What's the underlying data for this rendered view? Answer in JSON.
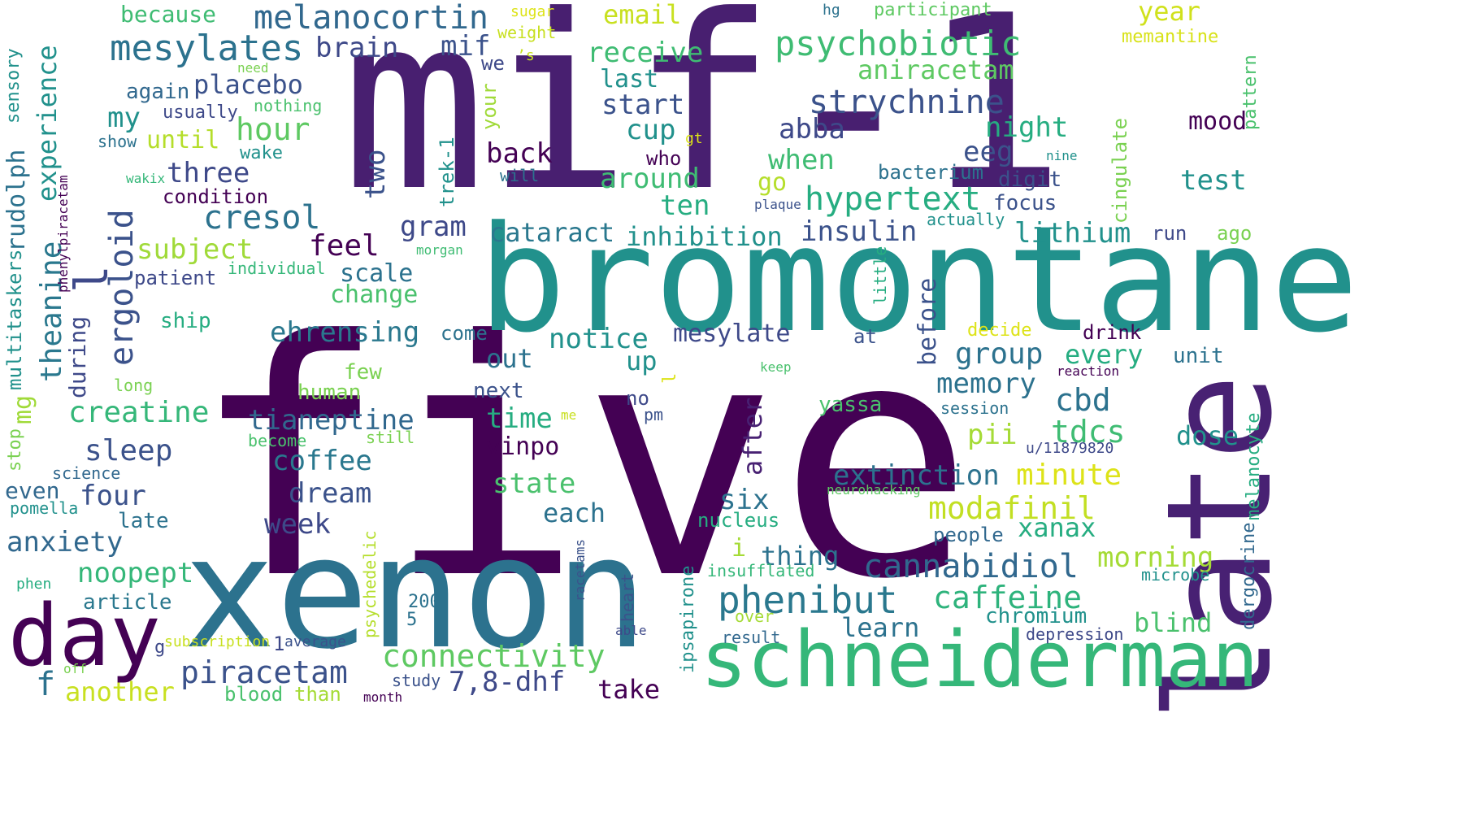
{
  "cloud": {
    "background": "#ffffff",
    "palette": "viridis",
    "words": [
      {
        "text": "five",
        "color": "#440154"
      },
      {
        "text": "mif-1",
        "color": "#481f70"
      },
      {
        "text": "bromontane",
        "color": "#21918c"
      },
      {
        "text": "xenon",
        "color": "#2c728e"
      },
      {
        "text": "late",
        "color": "#482173"
      },
      {
        "text": "schneiderman",
        "color": "#35b779"
      },
      {
        "text": "day",
        "color": "#440154"
      },
      {
        "text": "l",
        "color": "#3e4989"
      },
      {
        "text": "melanocortin",
        "color": "#31688e"
      },
      {
        "text": "mesylates",
        "color": "#2c728e"
      },
      {
        "text": "psychobiotic",
        "color": "#3fbc73"
      },
      {
        "text": "strychnine",
        "color": "#3b528b"
      },
      {
        "text": "hypertext",
        "color": "#26ad81"
      },
      {
        "text": "cresol",
        "color": "#2c728e"
      },
      {
        "text": "ergoloid",
        "color": "#3b528b"
      },
      {
        "text": "phenibut",
        "color": "#2a788e"
      },
      {
        "text": "cannabidiol",
        "color": "#31688e"
      },
      {
        "text": "modafinil",
        "color": "#c2df23"
      },
      {
        "text": "piracetam",
        "color": "#3b528b"
      },
      {
        "text": "connectivity",
        "color": "#5ec962"
      },
      {
        "text": "caffeine",
        "color": "#2eb37c"
      },
      {
        "text": "creatine",
        "color": "#35b779"
      },
      {
        "text": "tianeptine",
        "color": "#31688e"
      },
      {
        "text": "extinction",
        "color": "#2c728e"
      },
      {
        "text": "sleep",
        "color": "#3b528b"
      },
      {
        "text": "anxiety",
        "color": "#31688e"
      },
      {
        "text": "noopept",
        "color": "#35b779"
      },
      {
        "text": "coffee",
        "color": "#2a788e"
      },
      {
        "text": "dream",
        "color": "#3b528b"
      },
      {
        "text": "memory",
        "color": "#2c728e"
      },
      {
        "text": "group",
        "color": "#2c728e"
      },
      {
        "text": "tdcs",
        "color": "#3fbc73"
      },
      {
        "text": "cbd",
        "color": "#2c728e"
      },
      {
        "text": "minute",
        "color": "#dde318"
      },
      {
        "text": "morning",
        "color": "#a5db36"
      },
      {
        "text": "notice",
        "color": "#21918c"
      },
      {
        "text": "mesylate",
        "color": "#3e4989"
      },
      {
        "text": "ehrensing",
        "color": "#2a788e"
      },
      {
        "text": "insulin",
        "color": "#3b528b"
      },
      {
        "text": "inhibition",
        "color": "#21918c"
      },
      {
        "text": "cataract",
        "color": "#2a788e"
      },
      {
        "text": "lithium",
        "color": "#21918c"
      },
      {
        "text": "aniracetam",
        "color": "#5ec962"
      },
      {
        "text": "receive",
        "color": "#3fbc73"
      },
      {
        "text": "brain",
        "color": "#3e4989"
      },
      {
        "text": "mif",
        "color": "#3b528b"
      },
      {
        "text": "email",
        "color": "#c8e020"
      },
      {
        "text": "year",
        "color": "#d0e11c"
      },
      {
        "text": "memantine",
        "color": "#d8e219"
      },
      {
        "text": "participant",
        "color": "#5ec962"
      },
      {
        "text": "because",
        "color": "#3fbc73"
      },
      {
        "text": "placebo",
        "color": "#3b528b"
      },
      {
        "text": "hour",
        "color": "#5ec962"
      },
      {
        "text": "three",
        "color": "#3e4989"
      },
      {
        "text": "subject",
        "color": "#a0da39"
      },
      {
        "text": "feel",
        "color": "#440154"
      },
      {
        "text": "gram",
        "color": "#3e4989"
      },
      {
        "text": "scale",
        "color": "#2c728e"
      },
      {
        "text": "change",
        "color": "#4ac16d"
      },
      {
        "text": "abba",
        "color": "#3e4989"
      },
      {
        "text": "eeg",
        "color": "#3b528b"
      },
      {
        "text": "night",
        "color": "#26ad81"
      },
      {
        "text": "mood",
        "color": "#440154"
      },
      {
        "text": "test",
        "color": "#21918c"
      },
      {
        "text": "start",
        "color": "#3b528b"
      },
      {
        "text": "cup",
        "color": "#21918c"
      },
      {
        "text": "around",
        "color": "#3fbc73"
      },
      {
        "text": "ten",
        "color": "#26ad81"
      },
      {
        "text": "last",
        "color": "#21918c"
      },
      {
        "text": "when",
        "color": "#3fbc73"
      },
      {
        "text": "back",
        "color": "#440154"
      },
      {
        "text": "two",
        "color": "#3b528b"
      },
      {
        "text": "four",
        "color": "#3b528b"
      },
      {
        "text": "week",
        "color": "#3e4989"
      },
      {
        "text": "six",
        "color": "#2c728e"
      },
      {
        "text": "each",
        "color": "#2c728e"
      },
      {
        "text": "out",
        "color": "#2c728e"
      },
      {
        "text": "up",
        "color": "#21918c"
      },
      {
        "text": "every",
        "color": "#26ad81"
      },
      {
        "text": "state",
        "color": "#4ac16d"
      },
      {
        "text": "time",
        "color": "#26ad81"
      },
      {
        "text": "vinpo",
        "color": "#440154"
      },
      {
        "text": "pii",
        "color": "#a5db36"
      },
      {
        "text": "xanax",
        "color": "#26ad81"
      },
      {
        "text": "dose",
        "color": "#21918c"
      },
      {
        "text": "unit",
        "color": "#2c728e"
      },
      {
        "text": "blind",
        "color": "#4ac16d"
      },
      {
        "text": "chromium",
        "color": "#21918c"
      },
      {
        "text": "learn",
        "color": "#2c728e"
      },
      {
        "text": "thing",
        "color": "#2c728e"
      },
      {
        "text": "people",
        "color": "#31688e"
      },
      {
        "text": "drink",
        "color": "#440154"
      },
      {
        "text": "focus",
        "color": "#3b528b"
      },
      {
        "text": "digit",
        "color": "#3b528b"
      },
      {
        "text": "run",
        "color": "#3e4989"
      },
      {
        "text": "ago",
        "color": "#7ad151"
      },
      {
        "text": "bacterium",
        "color": "#2c728e"
      },
      {
        "text": "actually",
        "color": "#21918c"
      },
      {
        "text": "take",
        "color": "#440154"
      },
      {
        "text": "7,8-dhf",
        "color": "#3e4989"
      },
      {
        "text": "another",
        "color": "#c8e020"
      },
      {
        "text": "blood",
        "color": "#4ac16d"
      },
      {
        "text": "than",
        "color": "#a5db36"
      },
      {
        "text": "study",
        "color": "#3b528b"
      },
      {
        "text": "month",
        "color": "#440154"
      },
      {
        "text": "article",
        "color": "#2a788e"
      },
      {
        "text": "f",
        "color": "#2c728e"
      },
      {
        "text": "mg",
        "color": "#a0da39"
      },
      {
        "text": "even",
        "color": "#31688e"
      },
      {
        "text": "late",
        "color": "#2c728e"
      },
      {
        "text": "science",
        "color": "#31688e"
      },
      {
        "text": "pomella",
        "color": "#21918c"
      },
      {
        "text": "phen",
        "color": "#26ad81"
      },
      {
        "text": "again",
        "color": "#31688e"
      },
      {
        "text": "my",
        "color": "#21918c"
      },
      {
        "text": "until",
        "color": "#b5de2b"
      },
      {
        "text": "usually",
        "color": "#3e4989"
      },
      {
        "text": "show",
        "color": "#2c728e"
      },
      {
        "text": "nothing",
        "color": "#4ac16d"
      },
      {
        "text": "need",
        "color": "#7ad151"
      },
      {
        "text": "wake",
        "color": "#21918c"
      },
      {
        "text": "condition",
        "color": "#440154"
      },
      {
        "text": "wakix",
        "color": "#35b779"
      },
      {
        "text": "individual",
        "color": "#35b779"
      },
      {
        "text": "patient",
        "color": "#3e4989"
      },
      {
        "text": "ship",
        "color": "#26ad81"
      },
      {
        "text": "long",
        "color": "#7ad151"
      },
      {
        "text": "human",
        "color": "#7ad151"
      },
      {
        "text": "few",
        "color": "#7ad151"
      },
      {
        "text": "next",
        "color": "#3b528b"
      },
      {
        "text": "come",
        "color": "#2c728e"
      },
      {
        "text": "no",
        "color": "#3e4989"
      },
      {
        "text": "pm",
        "color": "#3b528b"
      },
      {
        "text": "me",
        "color": "#c8e020"
      },
      {
        "text": "become",
        "color": "#4ac16d"
      },
      {
        "text": "still",
        "color": "#7ad151"
      },
      {
        "text": "200",
        "color": "#2c728e"
      },
      {
        "text": "5",
        "color": "#2c728e"
      },
      {
        "text": "1",
        "color": "#3e4989"
      },
      {
        "text": "average",
        "color": "#3b528b"
      },
      {
        "text": "g",
        "color": "#3e4989"
      },
      {
        "text": "subscription",
        "color": "#c8e020"
      },
      {
        "text": "off",
        "color": "#7ad151"
      },
      {
        "text": "able",
        "color": "#3e4989"
      },
      {
        "text": "over",
        "color": "#a5db36"
      },
      {
        "text": "result",
        "color": "#31688e"
      },
      {
        "text": "insufflated",
        "color": "#35b779"
      },
      {
        "text": "nucleus",
        "color": "#26ad81"
      },
      {
        "text": "i",
        "color": "#a5db36"
      },
      {
        "text": "microbe",
        "color": "#21918c"
      },
      {
        "text": "depression",
        "color": "#3e4989"
      },
      {
        "text": "heart",
        "color": "#3b528b"
      },
      {
        "text": "ipsapirone",
        "color": "#21918c"
      },
      {
        "text": "decide",
        "color": "#dde318"
      },
      {
        "text": "at",
        "color": "#3b528b"
      },
      {
        "text": "keep",
        "color": "#4ac16d"
      },
      {
        "text": "reaction",
        "color": "#440154"
      },
      {
        "text": "session",
        "color": "#2c728e"
      },
      {
        "text": "yassa",
        "color": "#4ac16d"
      },
      {
        "text": "u/11879820",
        "color": "#3e4989"
      },
      {
        "text": "neurohacking",
        "color": "#5ec962"
      },
      {
        "text": "plaque",
        "color": "#3b528b"
      },
      {
        "text": "go",
        "color": "#b5de2b"
      },
      {
        "text": "who",
        "color": "#440154"
      },
      {
        "text": "will",
        "color": "#2c728e"
      },
      {
        "text": "gt",
        "color": "#dde318"
      },
      {
        "text": "nine",
        "color": "#21918c"
      },
      {
        "text": "we",
        "color": "#3e4989"
      },
      {
        "text": "’s",
        "color": "#c8e020"
      },
      {
        "text": "sugar",
        "color": "#dde318"
      },
      {
        "text": "weight",
        "color": "#c8e020"
      },
      {
        "text": "hg",
        "color": "#2c728e"
      },
      {
        "text": "morgan",
        "color": "#3fbc73"
      },
      {
        "text": "your",
        "color": "#a0da39"
      },
      {
        "text": "trek-1",
        "color": "#21918c"
      },
      {
        "text": "little",
        "color": "#26ad81"
      },
      {
        "text": "before",
        "color": "#3b528b"
      },
      {
        "text": "after",
        "color": "#482173"
      },
      {
        "text": "during",
        "color": "#3e4989"
      },
      {
        "text": "theanine",
        "color": "#2a788e"
      },
      {
        "text": "experience",
        "color": "#21918c"
      },
      {
        "text": "rudolph",
        "color": "#2c728e"
      },
      {
        "text": "multitaskers",
        "color": "#21918c"
      },
      {
        "text": "sensory",
        "color": "#21918c"
      },
      {
        "text": "stop",
        "color": "#7ad151"
      },
      {
        "text": "phenylpiracetam",
        "color": "#440154"
      },
      {
        "text": "racetams",
        "color": "#3b528b"
      },
      {
        "text": "psychedelic",
        "color": "#b5de2b"
      },
      {
        "text": "cingulate",
        "color": "#7ad151"
      },
      {
        "text": "pattern",
        "color": "#4ac16d"
      },
      {
        "text": "melanocyte",
        "color": "#26ad81"
      },
      {
        "text": "dergocrine",
        "color": "#31688e"
      },
      {
        "text": "l",
        "color": "#dde318"
      }
    ]
  }
}
